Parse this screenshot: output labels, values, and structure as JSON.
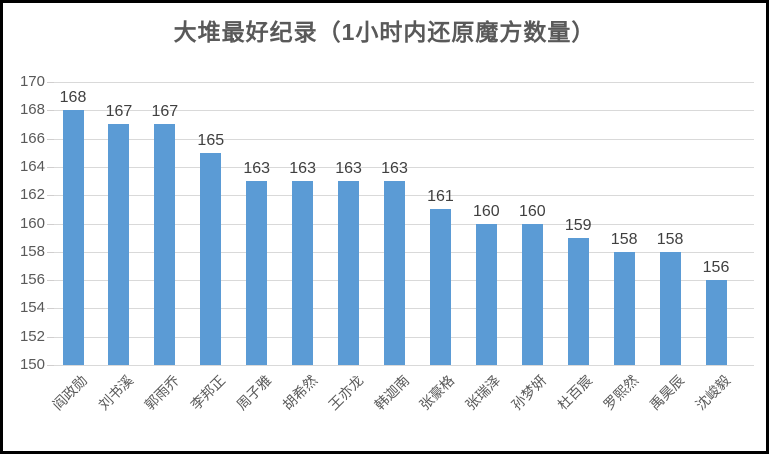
{
  "window": {
    "background": "#ffffff",
    "border_color": "#000000"
  },
  "chart_data": {
    "type": "bar",
    "title": "大堆最好纪录（1小时内还原魔方数量）",
    "categories": [
      "阎政勋",
      "刘书溪",
      "郭雨乔",
      "李邦正",
      "周子雅",
      "胡希然",
      "王亦龙",
      "韩迦南",
      "张豪格",
      "张瑞泽",
      "孙梦妍",
      "杜百宸",
      "罗熙然",
      "禹昊辰",
      "沈峻毅"
    ],
    "values": [
      168,
      167,
      167,
      165,
      163,
      163,
      163,
      163,
      161,
      160,
      160,
      159,
      158,
      158,
      156
    ],
    "xlabel": "",
    "ylabel": "",
    "ylim": [
      150,
      170
    ],
    "ytick_step": 2,
    "yticks": [
      150,
      152,
      154,
      156,
      158,
      160,
      162,
      164,
      166,
      168,
      170
    ],
    "grid": true,
    "legend": "none",
    "data_labels": true,
    "x_label_rotation_deg": 45,
    "colors": {
      "bar": "#5B9BD5",
      "gridline": "#D9D9D9",
      "tick": "#D0CECE",
      "title_text": "#595959",
      "axis_text": "#595959",
      "data_label_text": "#404040"
    }
  }
}
